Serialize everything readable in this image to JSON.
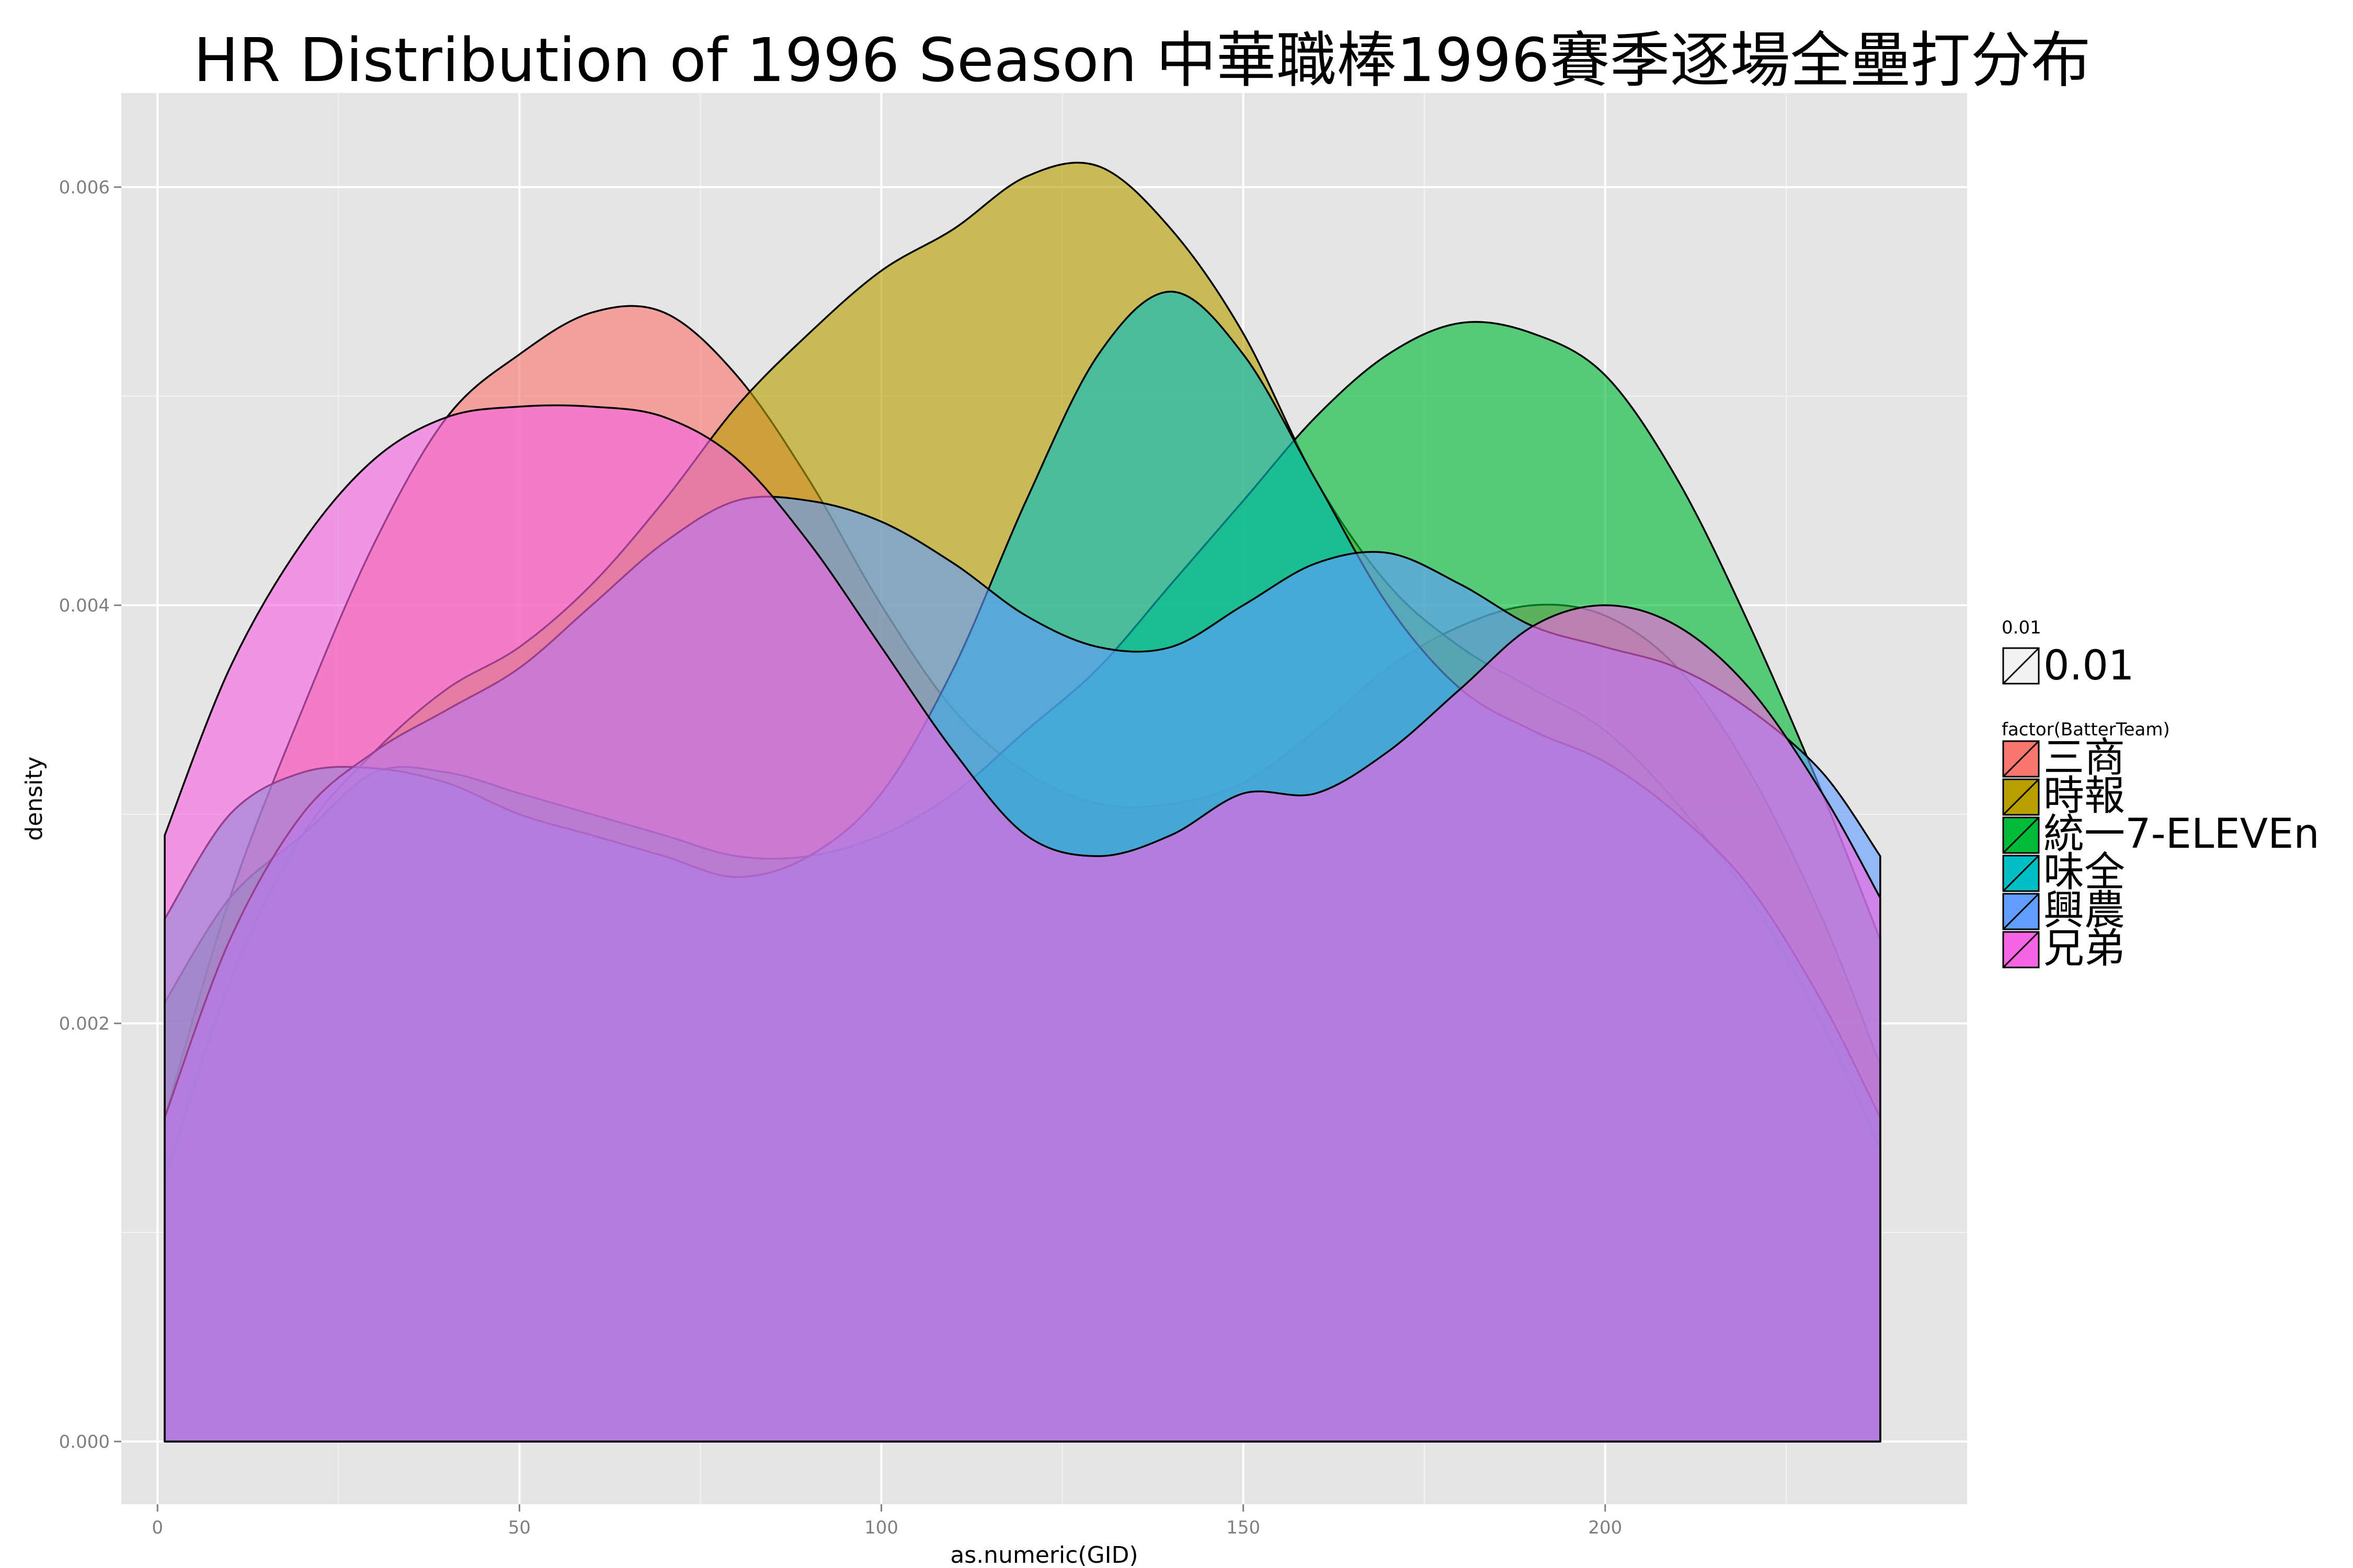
{
  "chart_data": {
    "type": "area",
    "title": "HR Distribution of 1996 Season 中華職棒1996賽季逐場全壘打分布",
    "xlabel": "as.numeric(GID)",
    "ylabel": "density",
    "xlim": [
      -5,
      250
    ],
    "ylim": [
      -0.0003,
      0.00645
    ],
    "x_ticks": [
      0,
      50,
      100,
      150,
      200
    ],
    "x_tick_labels": [
      "0",
      "50",
      "100",
      "150",
      "200"
    ],
    "y_ticks": [
      0,
      0.002,
      0.004,
      0.006
    ],
    "y_tick_labels": [
      "0.000",
      "0.002",
      "0.004",
      "0.006"
    ],
    "grid": true,
    "legend_placement": "right",
    "alpha_legend": {
      "title": "0.01",
      "label": "0.01"
    },
    "legend_title": "factor(BatterTeam)",
    "x": [
      1,
      10,
      20,
      30,
      40,
      50,
      60,
      70,
      80,
      90,
      100,
      110,
      120,
      130,
      140,
      150,
      160,
      170,
      180,
      190,
      200,
      210,
      220,
      230,
      238
    ],
    "series": [
      {
        "name": "三商",
        "color": "#F8766D",
        "values": [
          0.00155,
          0.0026,
          0.0035,
          0.0043,
          0.0049,
          0.0052,
          0.0054,
          0.0054,
          0.0051,
          0.0046,
          0.004,
          0.0035,
          0.0032,
          0.00305,
          0.00305,
          0.00315,
          0.0034,
          0.0037,
          0.0039,
          0.004,
          0.00395,
          0.0037,
          0.0032,
          0.0025,
          0.0018
        ]
      },
      {
        "name": "時報",
        "color": "#B79F00",
        "values": [
          0.00125,
          0.0022,
          0.0029,
          0.0033,
          0.0036,
          0.0038,
          0.0041,
          0.0045,
          0.00495,
          0.0053,
          0.0056,
          0.0058,
          0.00605,
          0.0061,
          0.0058,
          0.0053,
          0.0046,
          0.0041,
          0.0038,
          0.0036,
          0.0034,
          0.00305,
          0.0026,
          0.002,
          0.0014
        ]
      },
      {
        "name": "統一7-ELEVEn",
        "color": "#00BA38",
        "values": [
          0.0021,
          0.0026,
          0.0029,
          0.0032,
          0.0032,
          0.0031,
          0.003,
          0.0029,
          0.0028,
          0.0028,
          0.0029,
          0.0031,
          0.0034,
          0.0037,
          0.0041,
          0.0045,
          0.0049,
          0.0052,
          0.00535,
          0.0053,
          0.0051,
          0.0046,
          0.0039,
          0.0031,
          0.0024
        ]
      },
      {
        "name": "味全",
        "color": "#00BFC4",
        "values": [
          0.0025,
          0.003,
          0.0032,
          0.00322,
          0.00315,
          0.003,
          0.0029,
          0.0028,
          0.0027,
          0.0028,
          0.0031,
          0.0037,
          0.0045,
          0.0052,
          0.0055,
          0.0052,
          0.0046,
          0.004,
          0.0036,
          0.0034,
          0.00325,
          0.003,
          0.00265,
          0.0021,
          0.00155
        ]
      },
      {
        "name": "興農",
        "color": "#619CFF",
        "values": [
          0.00155,
          0.0024,
          0.003,
          0.0033,
          0.0035,
          0.0037,
          0.004,
          0.0043,
          0.0045,
          0.0045,
          0.0044,
          0.0042,
          0.00395,
          0.0038,
          0.0038,
          0.004,
          0.0042,
          0.00425,
          0.0041,
          0.0039,
          0.0038,
          0.0037,
          0.0035,
          0.0032,
          0.0028
        ]
      },
      {
        "name": "兄弟",
        "color": "#F564E3",
        "values": [
          0.0029,
          0.0037,
          0.0043,
          0.0047,
          0.0049,
          0.00495,
          0.00495,
          0.0049,
          0.0047,
          0.0043,
          0.0038,
          0.0033,
          0.0029,
          0.0028,
          0.0029,
          0.0031,
          0.0031,
          0.0033,
          0.0036,
          0.0039,
          0.004,
          0.0039,
          0.0036,
          0.0031,
          0.0026
        ]
      }
    ]
  }
}
